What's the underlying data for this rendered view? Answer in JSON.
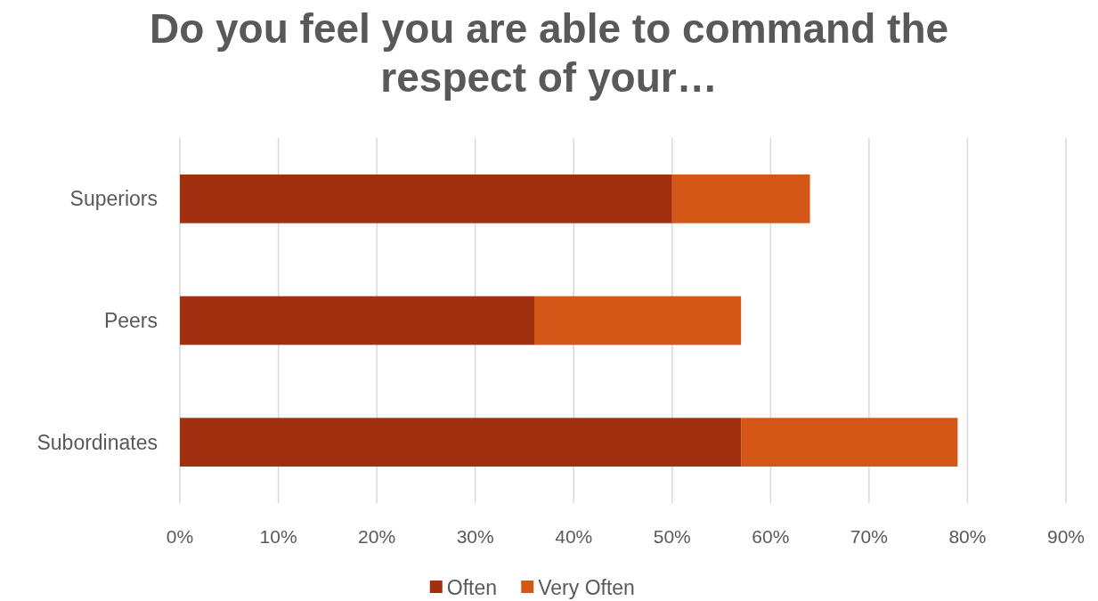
{
  "chart_data": {
    "type": "bar",
    "orientation": "horizontal",
    "stacked": true,
    "title": "Do you feel you are able to command the respect of your…",
    "categories": [
      "Superiors",
      "Peers",
      "Subordinates"
    ],
    "series": [
      {
        "name": "Often",
        "color": "#a0300f",
        "values": [
          50,
          36,
          57
        ]
      },
      {
        "name": "Very Often",
        "color": "#d45717",
        "values": [
          14,
          21,
          22
        ]
      }
    ],
    "xlim": [
      0,
      90
    ],
    "xticks": [
      {
        "value": 0,
        "label": "0%"
      },
      {
        "value": 10,
        "label": "10%"
      },
      {
        "value": 20,
        "label": "20%"
      },
      {
        "value": 30,
        "label": "30%"
      },
      {
        "value": 40,
        "label": "40%"
      },
      {
        "value": 50,
        "label": "50%"
      },
      {
        "value": 60,
        "label": "60%"
      },
      {
        "value": 70,
        "label": "70%"
      },
      {
        "value": 80,
        "label": "80%"
      },
      {
        "value": 90,
        "label": "90%"
      }
    ],
    "grid": "x",
    "legend": "bottom"
  }
}
